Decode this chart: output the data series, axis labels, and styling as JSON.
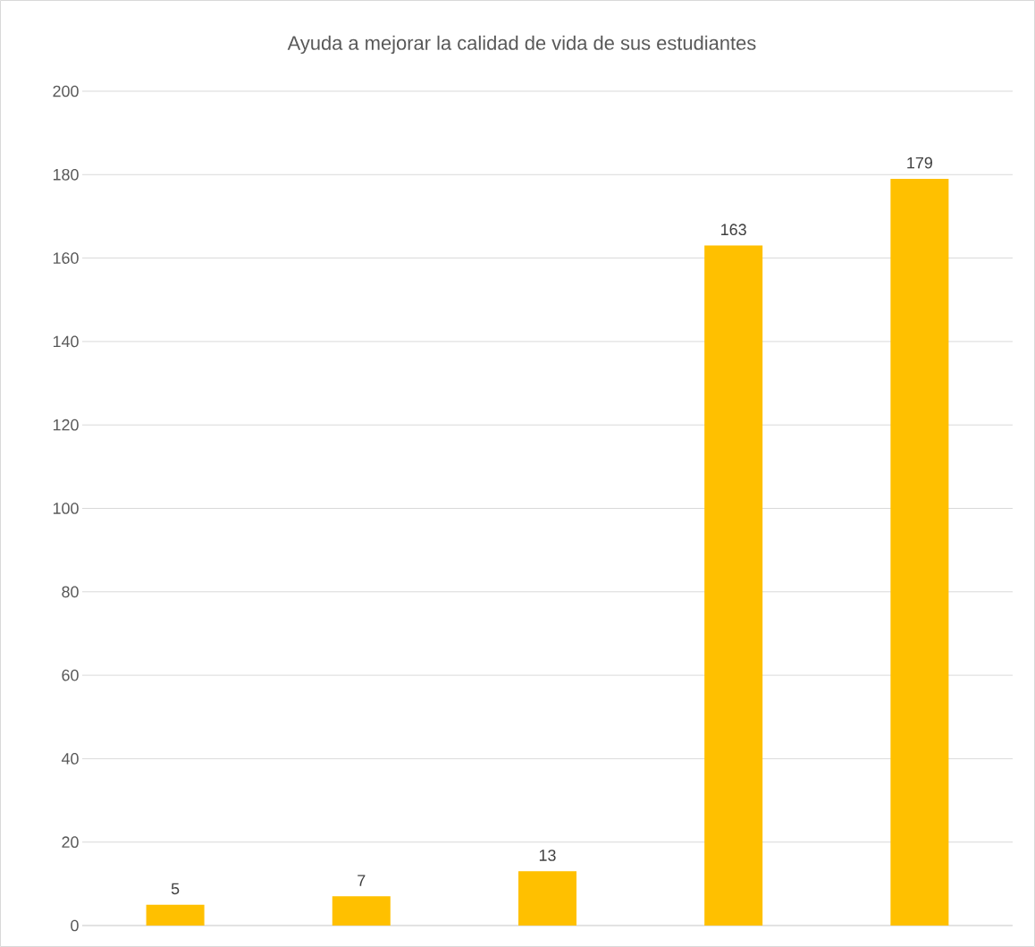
{
  "chart_data": {
    "type": "bar",
    "title": "Ayuda a mejorar la calidad de vida de sus estudiantes",
    "categories": [
      null,
      null,
      null,
      null,
      null
    ],
    "values": [
      5,
      7,
      13,
      163,
      179
    ],
    "color": "#ffc000",
    "ylim": [
      0,
      200
    ],
    "yticks": [
      0,
      20,
      40,
      60,
      80,
      100,
      120,
      140,
      160,
      180,
      200
    ],
    "grid": "y",
    "data_labels": true
  }
}
